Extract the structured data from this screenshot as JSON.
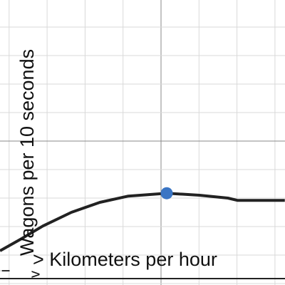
{
  "graph": {
    "y_label": "Wagons per 10 seconds",
    "x_label": "> Kilometers per hour",
    "fragments": [
      "i",
      "v"
    ],
    "curve": {
      "color": "#222222",
      "x": [
        -4.24,
        -3.68,
        -3.11,
        -2.36,
        -1.61,
        -0.86,
        0.15,
        1.01,
        1.76,
        2.01,
        3.26
      ],
      "y": [
        -3.85,
        -3.43,
        -2.98,
        -2.5,
        -2.15,
        -1.93,
        -1.83,
        -1.9,
        -2.0,
        -2.08,
        -2.08
      ]
    },
    "point": {
      "x": 0.15,
      "y": -1.83,
      "color": "#3a75c4"
    }
  }
}
